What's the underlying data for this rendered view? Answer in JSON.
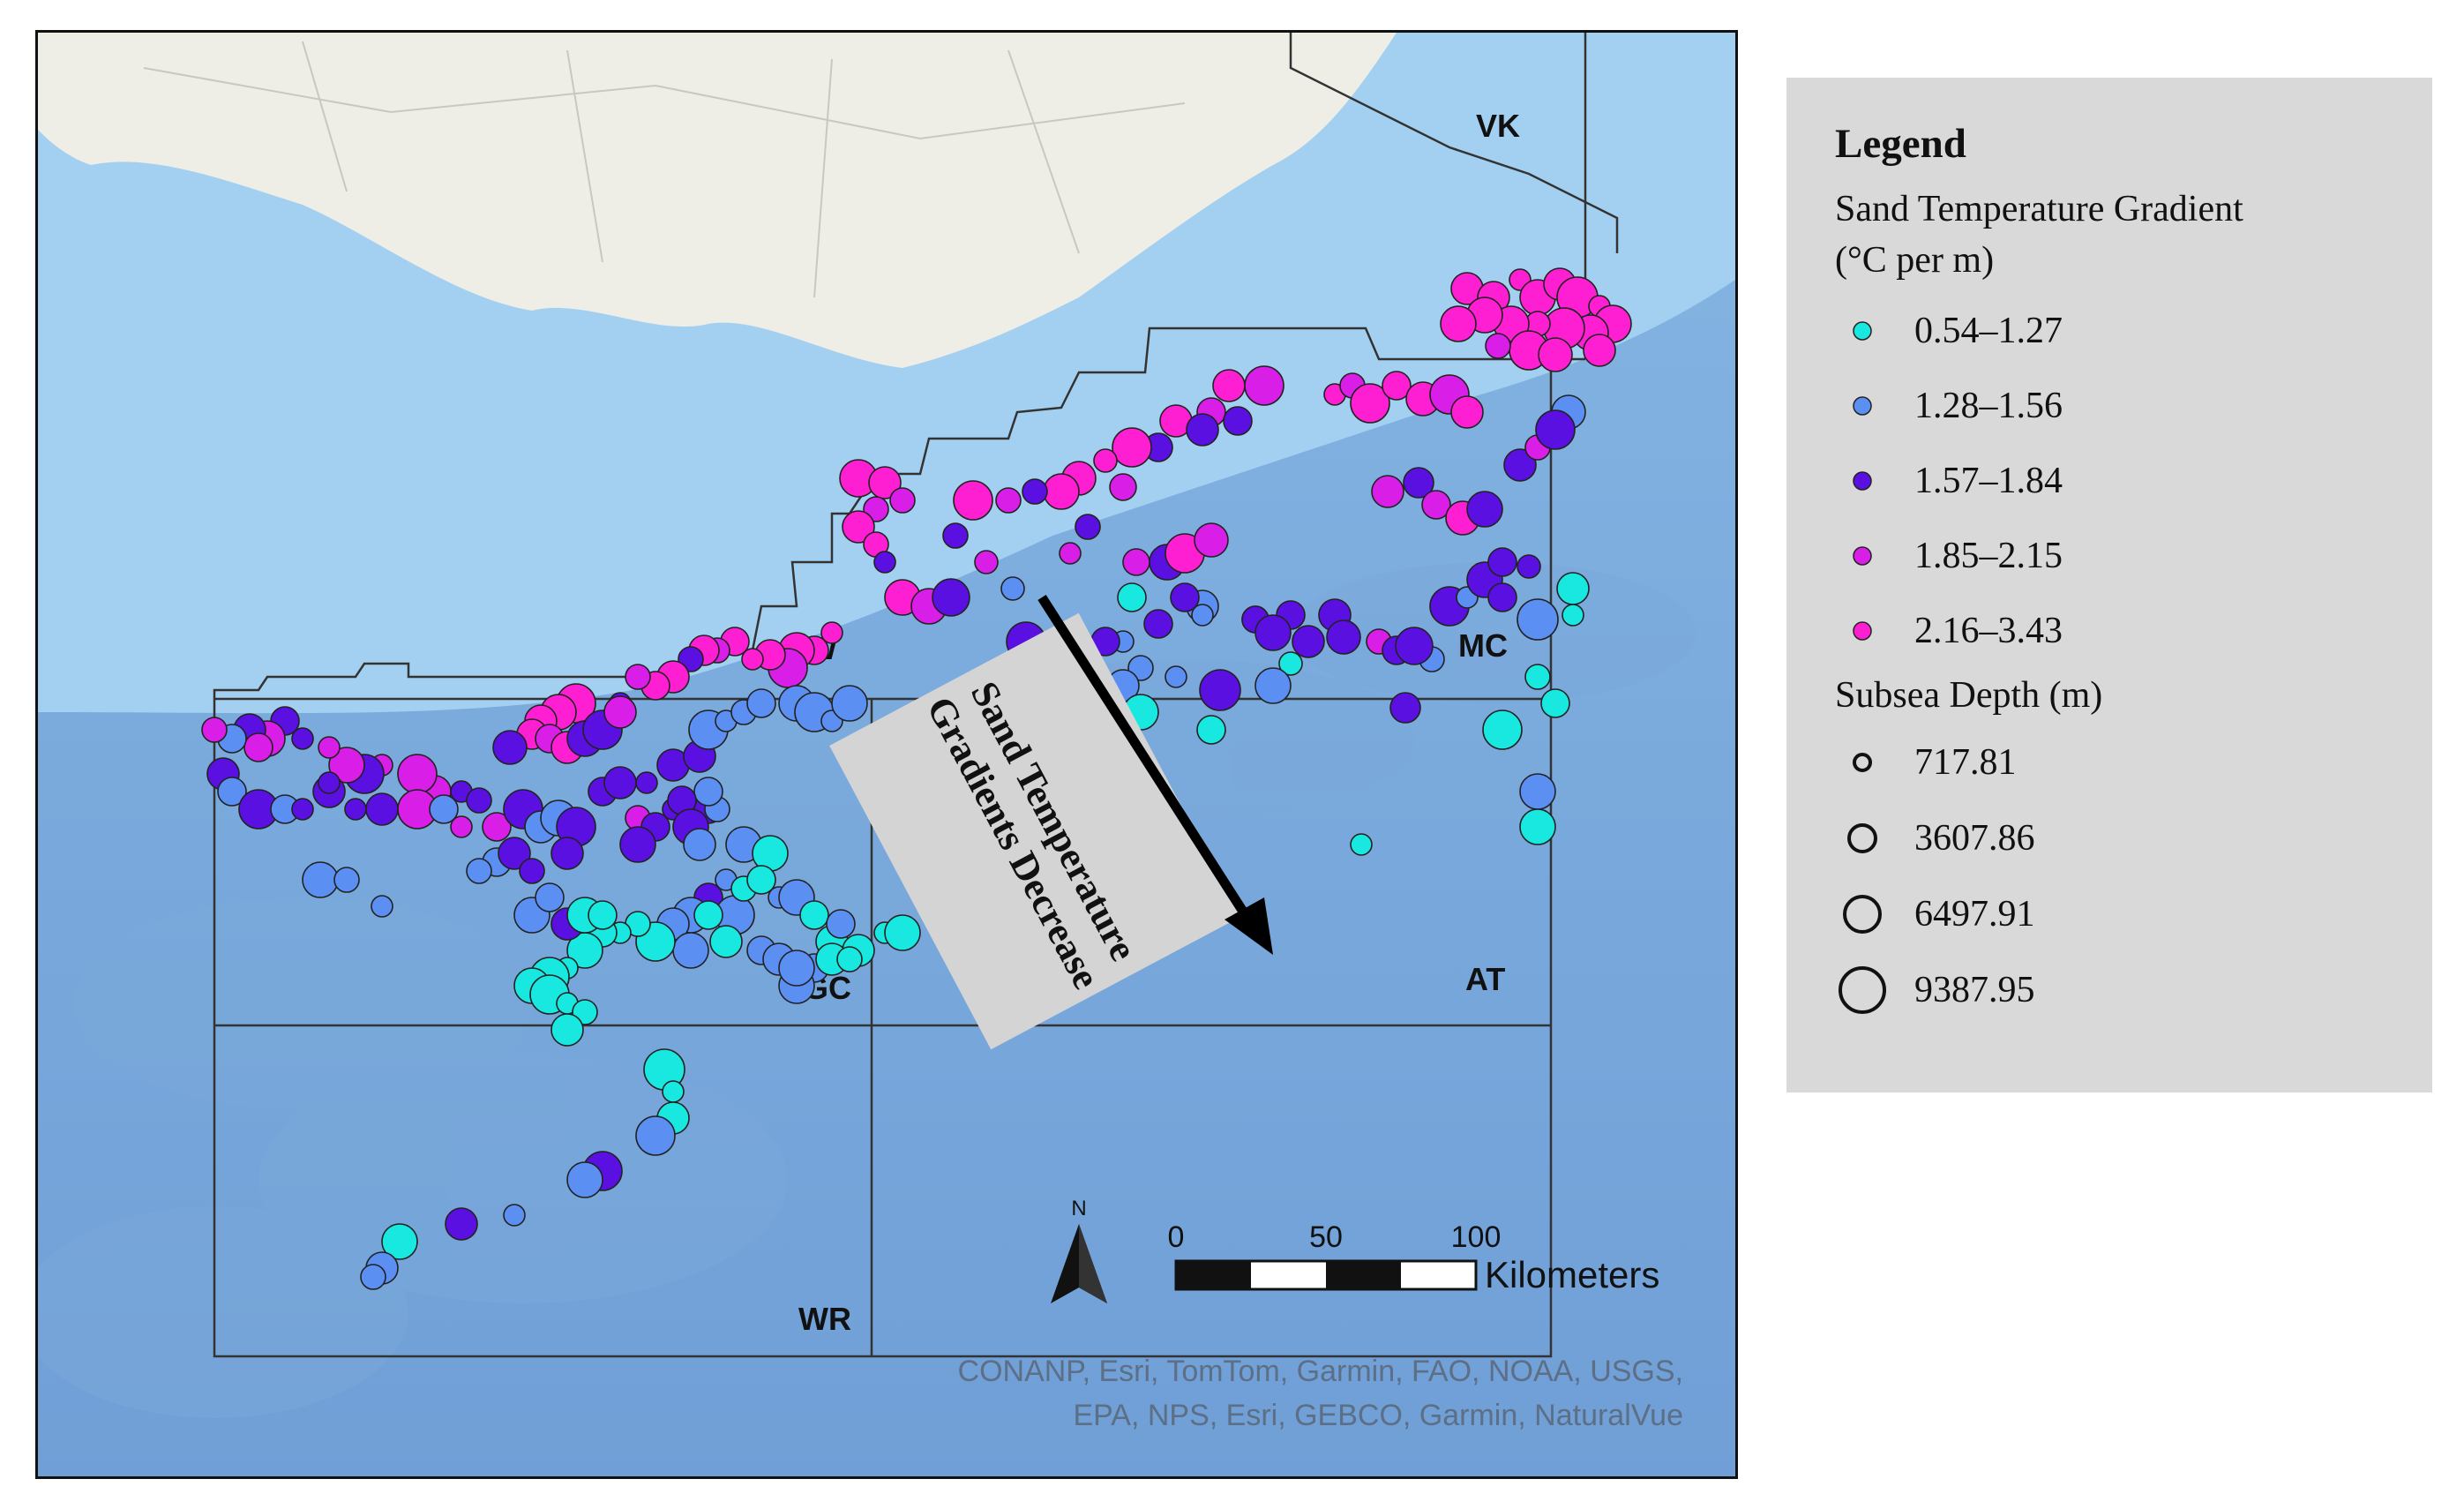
{
  "map": {
    "region_labels": [
      {
        "id": "vk",
        "text": "VK"
      },
      {
        "id": "ew",
        "text": "EW"
      },
      {
        "id": "mc",
        "text": "MC"
      },
      {
        "id": "gc",
        "text": "GC"
      },
      {
        "id": "at",
        "text": "AT"
      },
      {
        "id": "wr",
        "text": "WR"
      }
    ],
    "annotation": "Sand Temperature\nGradients Decrease",
    "attribution_line1": "CONANP, Esri, TomTom, Garmin, FAO, NOAA, USGS,",
    "attribution_line2": "EPA, NPS, Esri, GEBCO, Garmin, NaturalVue",
    "north_label": "N",
    "scale": {
      "ticks": [
        "0",
        "50",
        "100"
      ],
      "unit": "Kilometers"
    },
    "colors": {
      "land": "#efefe9",
      "shelf_water": "#9fcdee",
      "deep_water": "#7faee0",
      "outline": "#333333"
    }
  },
  "legend": {
    "title": "Legend",
    "gradient_title_line1": "Sand Temperature Gradient",
    "gradient_title_line2": "(°C per m)",
    "gradient_classes": [
      {
        "label": "0.54–1.27",
        "color": "#19e8e0"
      },
      {
        "label": "1.28–1.56",
        "color": "#5b8ff2"
      },
      {
        "label": "1.57–1.84",
        "color": "#5a10e0"
      },
      {
        "label": "1.85–2.15",
        "color": "#d91ee8"
      },
      {
        "label": "2.16–3.43",
        "color": "#ff1fd2"
      }
    ],
    "depth_title": "Subsea Depth (m)",
    "depth_classes": [
      {
        "label": "717.81",
        "size": 1
      },
      {
        "label": "3607.86",
        "size": 2
      },
      {
        "label": "6497.91",
        "size": 3
      },
      {
        "label": "9387.95",
        "size": 4
      }
    ]
  }
}
